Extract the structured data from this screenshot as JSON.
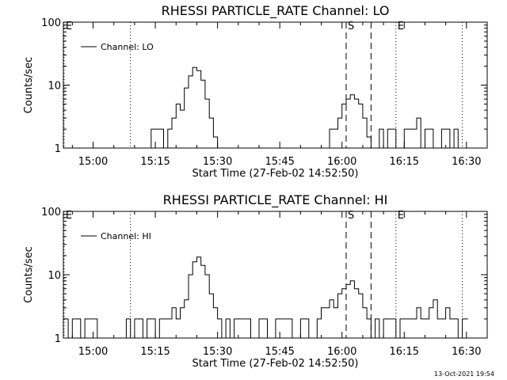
{
  "timestamp": "13-Oct-2021 19:54",
  "chart_data": [
    {
      "type": "line",
      "title": "RHESSI PARTICLE_RATE Channel: LO",
      "xlabel": "Start Time (27-Feb-02 14:52:50)",
      "ylabel": "Counts/sec",
      "y_scale": "log",
      "ylim": [
        1,
        100
      ],
      "xlim": [
        "14:52:50",
        "16:35"
      ],
      "x_ticks": [
        "15:00",
        "15:15",
        "15:30",
        "15:45",
        "16:00",
        "16:15",
        "16:30"
      ],
      "y_ticks": [
        "1",
        "10",
        "100"
      ],
      "legend": "Channel: LO",
      "legend_position": "top-left",
      "markers": [
        {
          "label": "E",
          "time": "14:53",
          "style": "dotted"
        },
        {
          "label": "",
          "time": "15:09",
          "style": "dotted"
        },
        {
          "label": "S",
          "time": "16:01",
          "style": "dashed"
        },
        {
          "label": "",
          "time": "16:07",
          "style": "dashed"
        },
        {
          "label": "E",
          "time": "16:13",
          "style": "dotted"
        },
        {
          "label": "",
          "time": "16:29",
          "style": "dotted"
        }
      ],
      "series": [
        {
          "name": "Channel: LO",
          "x": [
            "15:11",
            "15:13",
            "15:14",
            "15:16",
            "15:17",
            "15:18",
            "15:19",
            "15:20",
            "15:21",
            "15:22",
            "15:23",
            "15:24",
            "15:25",
            "15:26",
            "15:27",
            "15:28",
            "15:29",
            "15:30",
            "15:31",
            "15:56",
            "15:57",
            "15:58",
            "15:59",
            "16:00",
            "16:01",
            "16:02",
            "16:03",
            "16:04",
            "16:05",
            "16:06",
            "16:07",
            "16:08",
            "16:09",
            "16:10",
            "16:11",
            "16:12",
            "16:13",
            "16:14",
            "16:15",
            "16:16",
            "16:17",
            "16:18",
            "16:19",
            "16:20",
            "16:21",
            "16:22",
            "16:23",
            "16:24",
            "16:25",
            "16:26",
            "16:27",
            "16:28"
          ],
          "y": [
            1,
            1,
            2,
            2,
            1,
            2,
            3,
            5,
            4,
            9,
            14,
            19,
            17,
            12,
            6,
            3,
            1.5,
            1,
            1,
            1,
            2,
            2,
            3,
            5,
            6,
            7,
            6,
            5,
            3,
            1.5,
            1,
            1,
            2,
            1,
            2,
            2,
            1,
            1,
            2,
            2,
            2,
            3,
            1,
            2,
            2,
            1,
            1,
            2,
            2,
            1,
            2,
            1
          ]
        }
      ]
    },
    {
      "type": "line",
      "title": "RHESSI PARTICLE_RATE Channel: HI",
      "xlabel": "Start Time (27-Feb-02 14:52:50)",
      "ylabel": "Counts/sec",
      "y_scale": "log",
      "ylim": [
        1,
        100
      ],
      "xlim": [
        "14:52:50",
        "16:35"
      ],
      "x_ticks": [
        "15:00",
        "15:15",
        "15:30",
        "15:45",
        "16:00",
        "16:15",
        "16:30"
      ],
      "y_ticks": [
        "1",
        "10",
        "100"
      ],
      "legend": "Channel: HI",
      "legend_position": "top-left",
      "markers": [
        {
          "label": "E",
          "time": "14:53",
          "style": "dotted"
        },
        {
          "label": "",
          "time": "15:09",
          "style": "dotted"
        },
        {
          "label": "S",
          "time": "16:01",
          "style": "dashed"
        },
        {
          "label": "",
          "time": "16:07",
          "style": "dashed"
        },
        {
          "label": "E",
          "time": "16:13",
          "style": "dotted"
        },
        {
          "label": "",
          "time": "16:29",
          "style": "dotted"
        }
      ],
      "series": [
        {
          "name": "Channel: HI",
          "x": [
            "14:53",
            "14:54",
            "14:55",
            "14:56",
            "14:57",
            "14:58",
            "15:00",
            "15:01",
            "15:08",
            "15:09",
            "15:10",
            "15:11",
            "15:12",
            "15:13",
            "15:14",
            "15:15",
            "15:16",
            "15:17",
            "15:18",
            "15:19",
            "15:20",
            "15:21",
            "15:22",
            "15:23",
            "15:24",
            "15:25",
            "15:26",
            "15:27",
            "15:28",
            "15:29",
            "15:30",
            "15:31",
            "15:32",
            "15:33",
            "15:34",
            "15:36",
            "15:38",
            "15:40",
            "15:42",
            "15:44",
            "15:46",
            "15:48",
            "15:50",
            "15:52",
            "15:54",
            "15:55",
            "15:56",
            "15:57",
            "15:58",
            "15:59",
            "16:00",
            "16:01",
            "16:02",
            "16:03",
            "16:04",
            "16:05",
            "16:06",
            "16:07",
            "16:08",
            "16:09",
            "16:10",
            "16:11",
            "16:12",
            "16:13",
            "16:14",
            "16:15",
            "16:16",
            "16:17",
            "16:18",
            "16:19",
            "16:20",
            "16:21",
            "16:22",
            "16:23",
            "16:24",
            "16:25",
            "16:26",
            "16:27",
            "16:28",
            "16:29",
            "16:30"
          ],
          "y": [
            2,
            1,
            2,
            2,
            1,
            2,
            2,
            1,
            2,
            1,
            2,
            2,
            1,
            2,
            2,
            1,
            2,
            2,
            2,
            3,
            2,
            3,
            4,
            10,
            16,
            19,
            14,
            10,
            5,
            3,
            2,
            1,
            2,
            1,
            2,
            2,
            1,
            2,
            1,
            2,
            2,
            1,
            2,
            1,
            2,
            3,
            3,
            4,
            3,
            5,
            6,
            7,
            8,
            6,
            5,
            3,
            2,
            1,
            2,
            1,
            2,
            2,
            2,
            1,
            2,
            2,
            2,
            2,
            3,
            2,
            2,
            3,
            4,
            2,
            2,
            3,
            2,
            2,
            1,
            2,
            2
          ]
        }
      ]
    }
  ]
}
